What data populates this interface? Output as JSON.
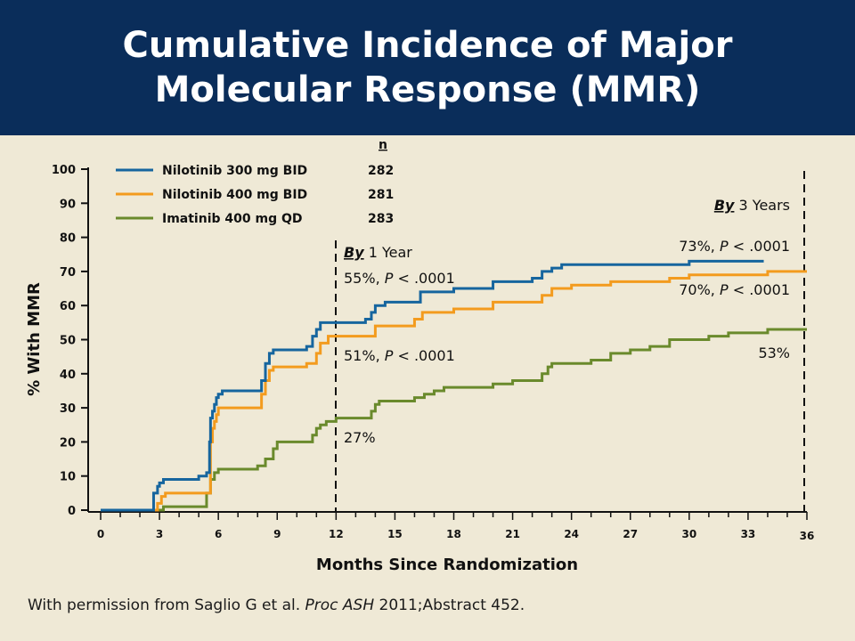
{
  "title": {
    "line1": "Cumulative Incidence of Major",
    "line2": "Molecular Response (MMR)"
  },
  "citation": {
    "prefix": "With permission from Saglio G et al. ",
    "source": "Proc ASH",
    "suffix": " 2011;Abstract 452."
  },
  "colors": {
    "header_bg": "#0a2d5a",
    "background": "#efe9d6",
    "nilotinib_300": "#16659e",
    "nilotinib_400": "#f39b1e",
    "imatinib_400": "#6a8a2c"
  },
  "chart_data": {
    "type": "line",
    "xlabel": "Months Since Randomization",
    "ylabel": "% With MMR",
    "xlim": [
      0,
      36
    ],
    "ylim": [
      0,
      100
    ],
    "x_ticks": [
      "0",
      "3",
      "6",
      "9",
      "12",
      "15",
      "18",
      "21",
      "24",
      "27",
      "30",
      "33",
      "36"
    ],
    "y_ticks": [
      "0",
      "10",
      "20",
      "30",
      "40",
      "50",
      "60",
      "70",
      "80",
      "90",
      "100"
    ],
    "grid": false,
    "legend_position": "top-left",
    "legend_n_header": "n",
    "series": [
      {
        "name": "Nilotinib 300 mg BID",
        "n": "282",
        "color": "#16659e",
        "x": [
          0,
          2.5,
          2.7,
          2.9,
          3.0,
          3.2,
          4.5,
          5.0,
          5.4,
          5.55,
          5.6,
          5.7,
          5.8,
          5.9,
          6.0,
          6.2,
          6.5,
          8.0,
          8.2,
          8.4,
          8.6,
          8.8,
          9.2,
          10.5,
          10.8,
          11.0,
          11.2,
          11.6,
          12.0,
          13.5,
          13.8,
          14.0,
          14.5,
          16.0,
          16.3,
          17.0,
          18.0,
          19.5,
          20.0,
          21.0,
          22.0,
          22.5,
          23.0,
          23.5,
          24.0,
          27.0,
          29.5,
          30.0,
          31.0,
          33.8
        ],
        "y": [
          0,
          0,
          5,
          7,
          8,
          9,
          9,
          10,
          11,
          20,
          27,
          29,
          31,
          33,
          34,
          35,
          35,
          35,
          38,
          43,
          46,
          47,
          47,
          48,
          51,
          53,
          55,
          55,
          55,
          56,
          58,
          60,
          61,
          61,
          64,
          64,
          65,
          65,
          67,
          67,
          68,
          70,
          71,
          72,
          72,
          72,
          72,
          73,
          73,
          73
        ]
      },
      {
        "name": "Nilotinib 400 mg BID",
        "n": "281",
        "color": "#f39b1e",
        "x": [
          0,
          2.7,
          2.9,
          3.1,
          3.3,
          5.4,
          5.6,
          5.7,
          5.8,
          5.9,
          6.0,
          6.2,
          6.6,
          8.0,
          8.2,
          8.4,
          8.6,
          8.8,
          9.2,
          10.5,
          11.0,
          11.2,
          11.6,
          12.0,
          13.6,
          14.0,
          16.0,
          16.4,
          18.0,
          19.8,
          20.0,
          22.0,
          22.5,
          23.0,
          24.0,
          25.0,
          26.0,
          27.0,
          29.0,
          30.0,
          31.0,
          32.0,
          34.0,
          36.0
        ],
        "y": [
          0,
          0,
          2,
          4,
          5,
          5,
          20,
          24,
          26,
          28,
          30,
          30,
          30,
          30,
          34,
          38,
          41,
          42,
          42,
          43,
          46,
          49,
          51,
          51,
          51,
          54,
          56,
          58,
          59,
          59,
          61,
          61,
          63,
          65,
          66,
          66,
          67,
          67,
          68,
          69,
          69,
          69,
          70,
          70
        ]
      },
      {
        "name": "Imatinib 400 mg QD",
        "n": "283",
        "color": "#6a8a2c",
        "x": [
          0,
          2.8,
          3.2,
          5.0,
          5.4,
          5.6,
          5.8,
          6.0,
          7.5,
          8.0,
          8.4,
          8.8,
          9.0,
          10.5,
          10.8,
          11.0,
          11.2,
          11.5,
          12.0,
          13.5,
          13.8,
          14.0,
          14.2,
          15.0,
          16.0,
          16.5,
          17.0,
          17.5,
          18.0,
          19.5,
          20.0,
          21.0,
          22.0,
          22.5,
          22.8,
          23.0,
          25.0,
          26.0,
          27.0,
          28.0,
          29.0,
          30.0,
          31.0,
          32.0,
          34.0,
          36.0
        ],
        "y": [
          0,
          0,
          1,
          1,
          5,
          9,
          11,
          12,
          12,
          13,
          15,
          18,
          20,
          20,
          22,
          24,
          25,
          26,
          27,
          27,
          29,
          31,
          32,
          32,
          33,
          34,
          35,
          36,
          36,
          36,
          37,
          38,
          38,
          40,
          42,
          43,
          44,
          46,
          47,
          48,
          50,
          50,
          51,
          52,
          53,
          53
        ]
      }
    ],
    "reference_lines": [
      {
        "x": 12,
        "label_prefix": "By",
        "label_suffix": " 1 Year"
      },
      {
        "x": 36,
        "label_prefix": "By",
        "label_suffix": " 3 Years"
      }
    ],
    "annotations": {
      "year1_nil300": {
        "value": "55%, ",
        "p": "P",
        "rest": " < .0001"
      },
      "year1_nil400": {
        "value": "51%, ",
        "p": "P",
        "rest": " < .0001"
      },
      "year1_ima": {
        "value": "27%"
      },
      "year3_nil300": {
        "value": "73%, ",
        "p": "P",
        "rest": " < .0001"
      },
      "year3_nil400": {
        "value": "70%, ",
        "p": "P",
        "rest": " < .0001"
      },
      "year3_ima": {
        "value": "53%"
      }
    }
  }
}
